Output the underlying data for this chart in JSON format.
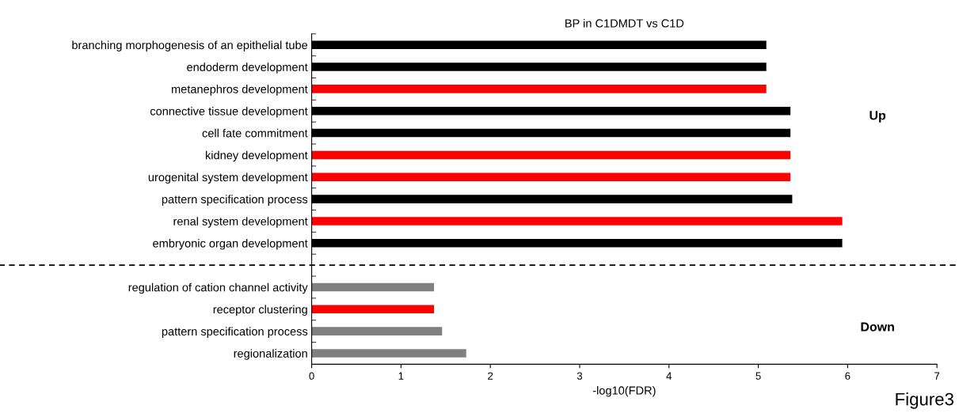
{
  "chart_data": {
    "type": "bar",
    "orientation": "horizontal",
    "title": "BP in C1DMDT vs C1D",
    "xlabel": "-log10(FDR)",
    "categories": [
      "branching morphogenesis of an epithelial tube",
      "endoderm development",
      "metanephros development",
      "connective tissue development",
      "cell fate commitment",
      "kidney development",
      "urogenital system development",
      "pattern specification process",
      "renal system development",
      "embryonic organ development",
      null,
      "regulation of cation channel activity",
      "receptor clustering",
      "pattern specification process",
      "regionalization"
    ],
    "values": [
      5.09,
      5.09,
      5.09,
      5.36,
      5.36,
      5.36,
      5.36,
      5.38,
      5.94,
      5.94,
      null,
      1.37,
      1.37,
      1.46,
      1.73
    ],
    "colors": [
      "#000000",
      "#000000",
      "#ff0000",
      "#000000",
      "#000000",
      "#ff0000",
      "#ff0000",
      "#000000",
      "#ff0000",
      "#000000",
      "#000000",
      "#808080",
      "#ff0000",
      "#808080",
      "#808080"
    ],
    "xlim": [
      0,
      7
    ],
    "xticks": [
      0,
      1,
      2,
      3,
      4,
      5,
      6,
      7
    ],
    "annotations": [
      "Up",
      "Down",
      "Figure3"
    ],
    "grid": false,
    "legend": false
  }
}
